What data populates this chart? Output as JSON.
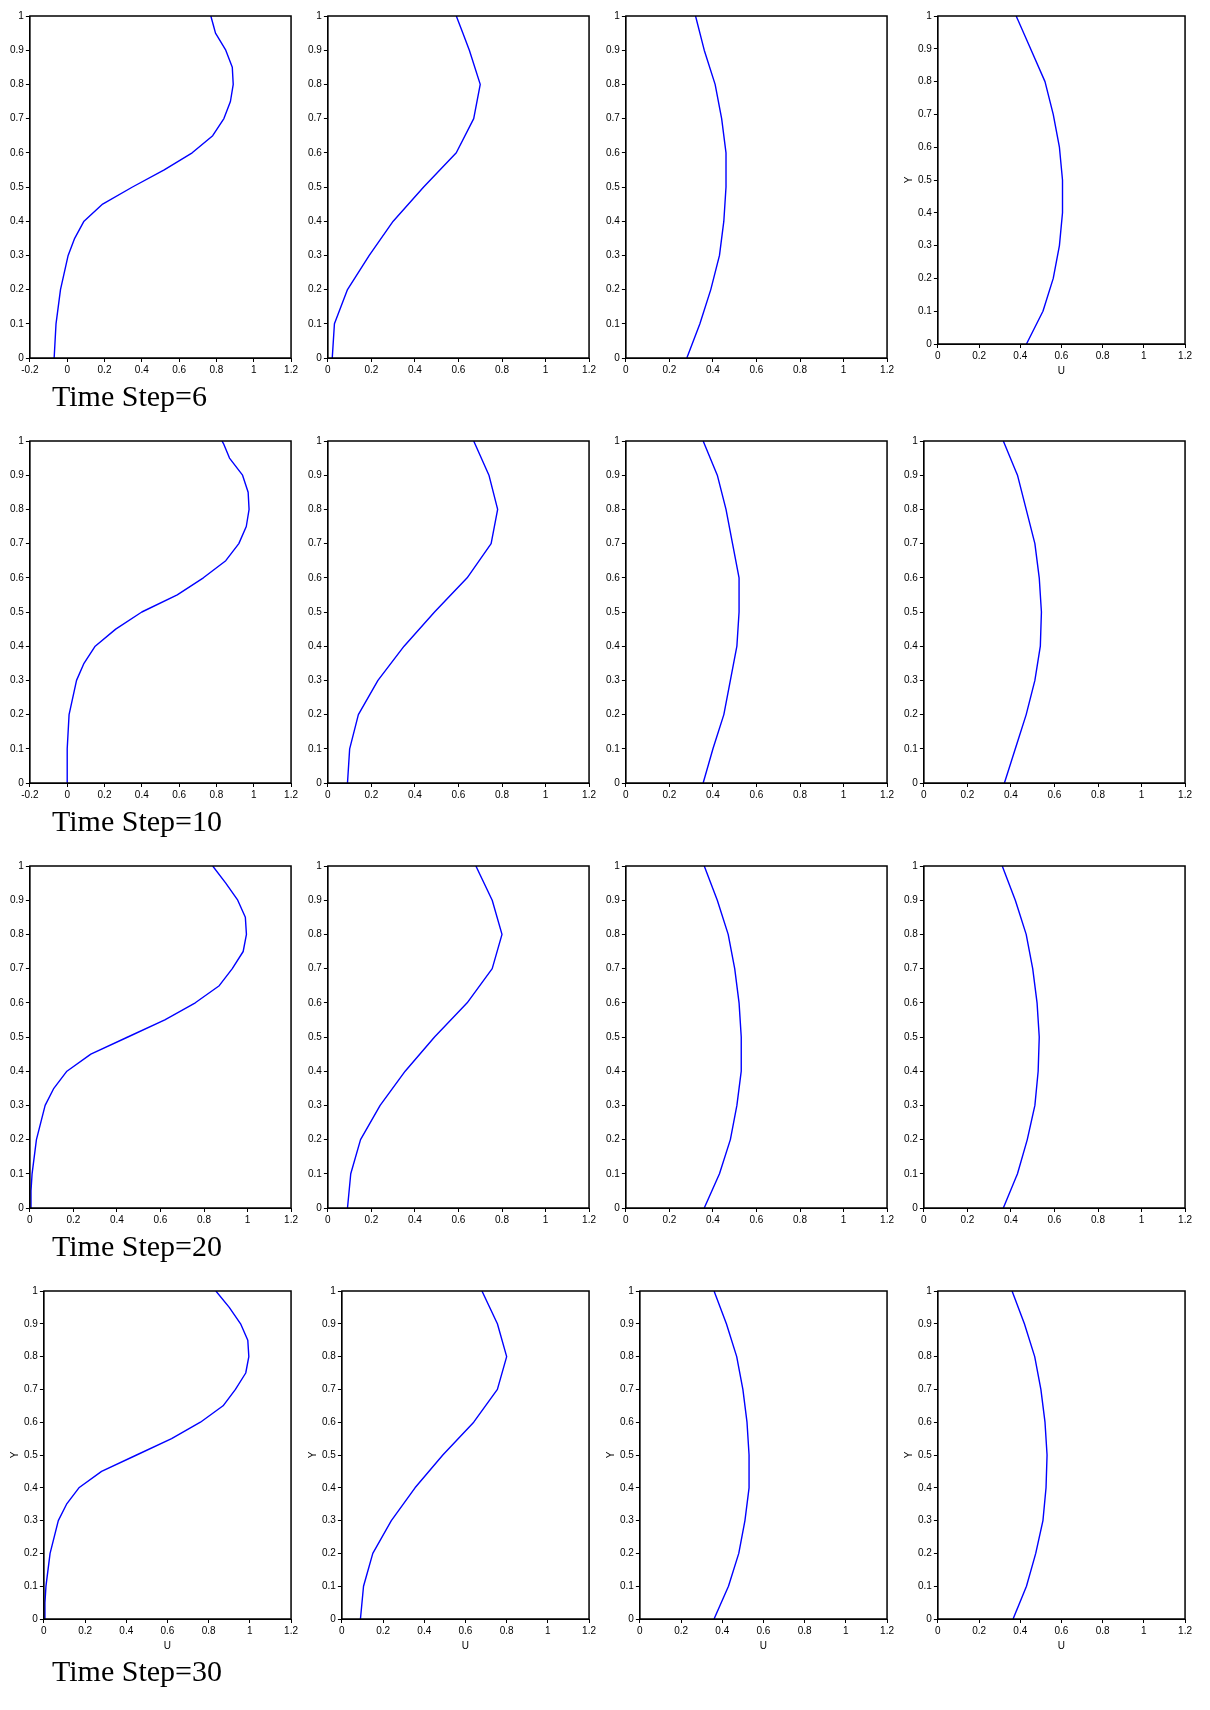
{
  "chart_data": [
    {
      "type": "line",
      "annotations": [
        "Time Step=6"
      ],
      "xlim": [
        -0.2,
        1.2
      ],
      "xticks": [
        -0.2,
        0,
        0.2,
        0.4,
        0.6,
        0.8,
        1,
        1.2
      ],
      "ylim": [
        0,
        1
      ],
      "yticks": [
        0,
        0.1,
        0.2,
        0.3,
        0.4,
        0.5,
        0.6,
        0.7,
        0.8,
        0.9,
        1
      ],
      "series": [
        {
          "color": "#0000ff",
          "x": [
            -0.07,
            -0.06,
            -0.036,
            0.005,
            0.04,
            0.09,
            0.19,
            0.35,
            0.52,
            0.67,
            0.78,
            0.84,
            0.875,
            0.89,
            0.885,
            0.85,
            0.795,
            0.785,
            0.77
          ],
          "values": [
            0,
            0.1,
            0.2,
            0.3,
            0.35,
            0.4,
            0.45,
            0.5,
            0.55,
            0.6,
            0.65,
            0.7,
            0.75,
            0.8,
            0.85,
            0.9,
            0.95,
            0.97,
            1
          ]
        }
      ]
    },
    {
      "type": "line",
      "xlim": [
        0,
        1.2
      ],
      "xticks": [
        0,
        0.2,
        0.4,
        0.6,
        0.8,
        1,
        1.2
      ],
      "ylim": [
        0,
        1
      ],
      "yticks": [
        0,
        0.1,
        0.2,
        0.3,
        0.4,
        0.5,
        0.6,
        0.7,
        0.8,
        0.9,
        1
      ],
      "series": [
        {
          "color": "#0000ff",
          "x": [
            0.02,
            0.03,
            0.09,
            0.19,
            0.3,
            0.44,
            0.59,
            0.67,
            0.7,
            0.65,
            0.62,
            0.59
          ],
          "values": [
            0,
            0.1,
            0.2,
            0.3,
            0.4,
            0.5,
            0.6,
            0.7,
            0.8,
            0.9,
            0.95,
            1
          ]
        }
      ]
    },
    {
      "type": "line",
      "xlim": [
        0,
        1.2
      ],
      "xticks": [
        0,
        0.2,
        0.4,
        0.6,
        0.8,
        1,
        1.2
      ],
      "ylim": [
        0,
        1
      ],
      "yticks": [
        0,
        0.1,
        0.2,
        0.3,
        0.4,
        0.5,
        0.6,
        0.7,
        0.8,
        0.9,
        1
      ],
      "series": [
        {
          "color": "#0000ff",
          "x": [
            0.28,
            0.34,
            0.39,
            0.43,
            0.45,
            0.46,
            0.46,
            0.44,
            0.41,
            0.36,
            0.32
          ],
          "values": [
            0,
            0.1,
            0.2,
            0.3,
            0.4,
            0.5,
            0.6,
            0.7,
            0.8,
            0.9,
            1
          ]
        }
      ]
    },
    {
      "type": "line",
      "xlabel": "U",
      "ylabel": "Y",
      "xlim": [
        0,
        1.2
      ],
      "xticks": [
        0,
        0.2,
        0.4,
        0.6,
        0.8,
        1,
        1.2
      ],
      "ylim": [
        0,
        1
      ],
      "yticks": [
        0,
        0.1,
        0.2,
        0.3,
        0.4,
        0.5,
        0.6,
        0.7,
        0.8,
        0.9,
        1
      ],
      "series": [
        {
          "color": "#0000ff",
          "x": [
            0.43,
            0.51,
            0.56,
            0.59,
            0.605,
            0.605,
            0.59,
            0.56,
            0.52,
            0.45,
            0.38
          ],
          "values": [
            0,
            0.1,
            0.2,
            0.3,
            0.4,
            0.5,
            0.6,
            0.7,
            0.8,
            0.9,
            1
          ]
        }
      ]
    },
    {
      "type": "line",
      "annotations": [
        "Time Step=10"
      ],
      "xlim": [
        -0.2,
        1.2
      ],
      "xticks": [
        -0.2,
        0,
        0.2,
        0.4,
        0.6,
        0.8,
        1,
        1.2
      ],
      "ylim": [
        0,
        1
      ],
      "yticks": [
        0,
        0.1,
        0.2,
        0.3,
        0.4,
        0.5,
        0.6,
        0.7,
        0.8,
        0.9,
        1
      ],
      "series": [
        {
          "color": "#0000ff",
          "x": [
            0,
            0,
            0.01,
            0.05,
            0.09,
            0.15,
            0.26,
            0.4,
            0.59,
            0.73,
            0.85,
            0.92,
            0.96,
            0.975,
            0.97,
            0.94,
            0.87,
            0.84,
            0.83
          ],
          "values": [
            0,
            0.1,
            0.2,
            0.3,
            0.35,
            0.4,
            0.45,
            0.5,
            0.55,
            0.6,
            0.65,
            0.7,
            0.75,
            0.8,
            0.85,
            0.9,
            0.95,
            0.99,
            1
          ]
        }
      ]
    },
    {
      "type": "line",
      "xlim": [
        0,
        1.2
      ],
      "xticks": [
        0,
        0.2,
        0.4,
        0.6,
        0.8,
        1,
        1.2
      ],
      "ylim": [
        0,
        1
      ],
      "yticks": [
        0,
        0.1,
        0.2,
        0.3,
        0.4,
        0.5,
        0.6,
        0.7,
        0.8,
        0.9,
        1
      ],
      "series": [
        {
          "color": "#0000ff",
          "x": [
            0.09,
            0.1,
            0.14,
            0.23,
            0.35,
            0.49,
            0.64,
            0.75,
            0.78,
            0.74,
            0.67
          ],
          "values": [
            0,
            0.1,
            0.2,
            0.3,
            0.4,
            0.5,
            0.6,
            0.7,
            0.8,
            0.9,
            1
          ]
        }
      ]
    },
    {
      "type": "line",
      "xlim": [
        0,
        1.2
      ],
      "xticks": [
        0,
        0.2,
        0.4,
        0.6,
        0.8,
        1,
        1.2
      ],
      "ylim": [
        0,
        1
      ],
      "yticks": [
        0,
        0.1,
        0.2,
        0.3,
        0.4,
        0.5,
        0.6,
        0.7,
        0.8,
        0.9,
        1
      ],
      "series": [
        {
          "color": "#0000ff",
          "x": [
            0.355,
            0.4,
            0.45,
            0.48,
            0.51,
            0.52,
            0.52,
            0.49,
            0.46,
            0.42,
            0.355
          ],
          "values": [
            0,
            0.1,
            0.2,
            0.3,
            0.4,
            0.5,
            0.6,
            0.7,
            0.8,
            0.9,
            1
          ]
        }
      ]
    },
    {
      "type": "line",
      "xlim": [
        0,
        1.2
      ],
      "xticks": [
        0,
        0.2,
        0.4,
        0.6,
        0.8,
        1,
        1.2
      ],
      "ylim": [
        0,
        1
      ],
      "yticks": [
        0,
        0.1,
        0.2,
        0.3,
        0.4,
        0.5,
        0.6,
        0.7,
        0.8,
        0.9,
        1
      ],
      "series": [
        {
          "color": "#0000ff",
          "x": [
            0.37,
            0.42,
            0.47,
            0.51,
            0.535,
            0.54,
            0.53,
            0.51,
            0.47,
            0.43,
            0.365
          ],
          "values": [
            0,
            0.1,
            0.2,
            0.3,
            0.4,
            0.5,
            0.6,
            0.7,
            0.8,
            0.9,
            1
          ]
        }
      ]
    },
    {
      "type": "line",
      "annotations": [
        "Time Step=20"
      ],
      "xlim": [
        0,
        1.2
      ],
      "xticks": [
        0,
        0.2,
        0.4,
        0.6,
        0.8,
        1,
        1.2
      ],
      "ylim": [
        0,
        1
      ],
      "yticks": [
        0,
        0.1,
        0.2,
        0.3,
        0.4,
        0.5,
        0.6,
        0.7,
        0.8,
        0.9,
        1
      ],
      "series": [
        {
          "color": "#0000ff",
          "x": [
            0.005,
            0.005,
            0.01,
            0.03,
            0.07,
            0.11,
            0.17,
            0.28,
            0.45,
            0.62,
            0.76,
            0.87,
            0.93,
            0.98,
            0.995,
            0.99,
            0.955,
            0.9,
            0.84
          ],
          "values": [
            0,
            0.05,
            0.1,
            0.2,
            0.3,
            0.35,
            0.4,
            0.45,
            0.5,
            0.55,
            0.6,
            0.65,
            0.7,
            0.75,
            0.8,
            0.85,
            0.9,
            0.95,
            1
          ]
        }
      ]
    },
    {
      "type": "line",
      "xlim": [
        0,
        1.2
      ],
      "xticks": [
        0,
        0.2,
        0.4,
        0.6,
        0.8,
        1,
        1.2
      ],
      "ylim": [
        0,
        1
      ],
      "yticks": [
        0,
        0.1,
        0.2,
        0.3,
        0.4,
        0.5,
        0.6,
        0.7,
        0.8,
        0.9,
        1
      ],
      "series": [
        {
          "color": "#0000ff",
          "x": [
            0.09,
            0.105,
            0.15,
            0.24,
            0.355,
            0.49,
            0.64,
            0.755,
            0.8,
            0.755,
            0.68
          ],
          "values": [
            0,
            0.1,
            0.2,
            0.3,
            0.4,
            0.5,
            0.6,
            0.7,
            0.8,
            0.9,
            1
          ]
        }
      ]
    },
    {
      "type": "line",
      "xlim": [
        0,
        1.2
      ],
      "xticks": [
        0,
        0.2,
        0.4,
        0.6,
        0.8,
        1,
        1.2
      ],
      "ylim": [
        0,
        1
      ],
      "yticks": [
        0,
        0.1,
        0.2,
        0.3,
        0.4,
        0.5,
        0.6,
        0.7,
        0.8,
        0.9,
        1
      ],
      "series": [
        {
          "color": "#0000ff",
          "x": [
            0.36,
            0.43,
            0.48,
            0.51,
            0.53,
            0.53,
            0.52,
            0.5,
            0.47,
            0.42,
            0.36
          ],
          "values": [
            0,
            0.1,
            0.2,
            0.3,
            0.4,
            0.5,
            0.6,
            0.7,
            0.8,
            0.9,
            1
          ]
        }
      ]
    },
    {
      "type": "line",
      "xlim": [
        0,
        1.2
      ],
      "xticks": [
        0,
        0.2,
        0.4,
        0.6,
        0.8,
        1,
        1.2
      ],
      "ylim": [
        0,
        1
      ],
      "yticks": [
        0,
        0.1,
        0.2,
        0.3,
        0.4,
        0.5,
        0.6,
        0.7,
        0.8,
        0.9,
        1
      ],
      "series": [
        {
          "color": "#0000ff",
          "x": [
            0.365,
            0.43,
            0.475,
            0.51,
            0.525,
            0.53,
            0.52,
            0.5,
            0.47,
            0.42,
            0.36
          ],
          "values": [
            0,
            0.1,
            0.2,
            0.3,
            0.4,
            0.5,
            0.6,
            0.7,
            0.8,
            0.9,
            1
          ]
        }
      ]
    },
    {
      "type": "line",
      "xlabel": "U",
      "ylabel": "Y",
      "annotations": [
        "Time Step=30"
      ],
      "xlim": [
        0,
        1.2
      ],
      "xticks": [
        0,
        0.2,
        0.4,
        0.6,
        0.8,
        1,
        1.2
      ],
      "ylim": [
        0,
        1
      ],
      "yticks": [
        0,
        0.1,
        0.2,
        0.3,
        0.4,
        0.5,
        0.6,
        0.7,
        0.8,
        0.9,
        1
      ],
      "series": [
        {
          "color": "#0000ff",
          "x": [
            0.005,
            0.005,
            0.01,
            0.03,
            0.07,
            0.11,
            0.17,
            0.28,
            0.45,
            0.62,
            0.76,
            0.87,
            0.93,
            0.98,
            0.995,
            0.99,
            0.955,
            0.9,
            0.835
          ],
          "values": [
            0,
            0.05,
            0.1,
            0.2,
            0.3,
            0.35,
            0.4,
            0.45,
            0.5,
            0.55,
            0.6,
            0.65,
            0.7,
            0.75,
            0.8,
            0.85,
            0.9,
            0.95,
            1
          ]
        }
      ]
    },
    {
      "type": "line",
      "xlabel": "U",
      "ylabel": "Y",
      "xlim": [
        0,
        1.2
      ],
      "xticks": [
        0,
        0.2,
        0.4,
        0.6,
        0.8,
        1,
        1.2
      ],
      "ylim": [
        0,
        1
      ],
      "yticks": [
        0,
        0.1,
        0.2,
        0.3,
        0.4,
        0.5,
        0.6,
        0.7,
        0.8,
        0.9,
        1
      ],
      "series": [
        {
          "color": "#0000ff",
          "x": [
            0.09,
            0.105,
            0.15,
            0.24,
            0.355,
            0.49,
            0.64,
            0.755,
            0.8,
            0.755,
            0.68
          ],
          "values": [
            0,
            0.1,
            0.2,
            0.3,
            0.4,
            0.5,
            0.6,
            0.7,
            0.8,
            0.9,
            1
          ]
        }
      ]
    },
    {
      "type": "line",
      "xlabel": "U",
      "ylabel": "Y",
      "xlim": [
        0,
        1.2
      ],
      "xticks": [
        0,
        0.2,
        0.4,
        0.6,
        0.8,
        1,
        1.2
      ],
      "ylim": [
        0,
        1
      ],
      "yticks": [
        0,
        0.1,
        0.2,
        0.3,
        0.4,
        0.5,
        0.6,
        0.7,
        0.8,
        0.9,
        1
      ],
      "series": [
        {
          "color": "#0000ff",
          "x": [
            0.36,
            0.43,
            0.48,
            0.51,
            0.53,
            0.53,
            0.52,
            0.5,
            0.47,
            0.42,
            0.36
          ],
          "values": [
            0,
            0.1,
            0.2,
            0.3,
            0.4,
            0.5,
            0.6,
            0.7,
            0.8,
            0.9,
            1
          ]
        }
      ]
    },
    {
      "type": "line",
      "xlabel": "U",
      "ylabel": "Y",
      "xlim": [
        0,
        1.2
      ],
      "xticks": [
        0,
        0.2,
        0.4,
        0.6,
        0.8,
        1,
        1.2
      ],
      "ylim": [
        0,
        1
      ],
      "yticks": [
        0,
        0.1,
        0.2,
        0.3,
        0.4,
        0.5,
        0.6,
        0.7,
        0.8,
        0.9,
        1
      ],
      "series": [
        {
          "color": "#0000ff",
          "x": [
            0.365,
            0.43,
            0.475,
            0.51,
            0.525,
            0.53,
            0.52,
            0.5,
            0.47,
            0.42,
            0.36
          ],
          "values": [
            0,
            0.1,
            0.2,
            0.3,
            0.4,
            0.5,
            0.6,
            0.7,
            0.8,
            0.9,
            1
          ]
        }
      ]
    }
  ]
}
